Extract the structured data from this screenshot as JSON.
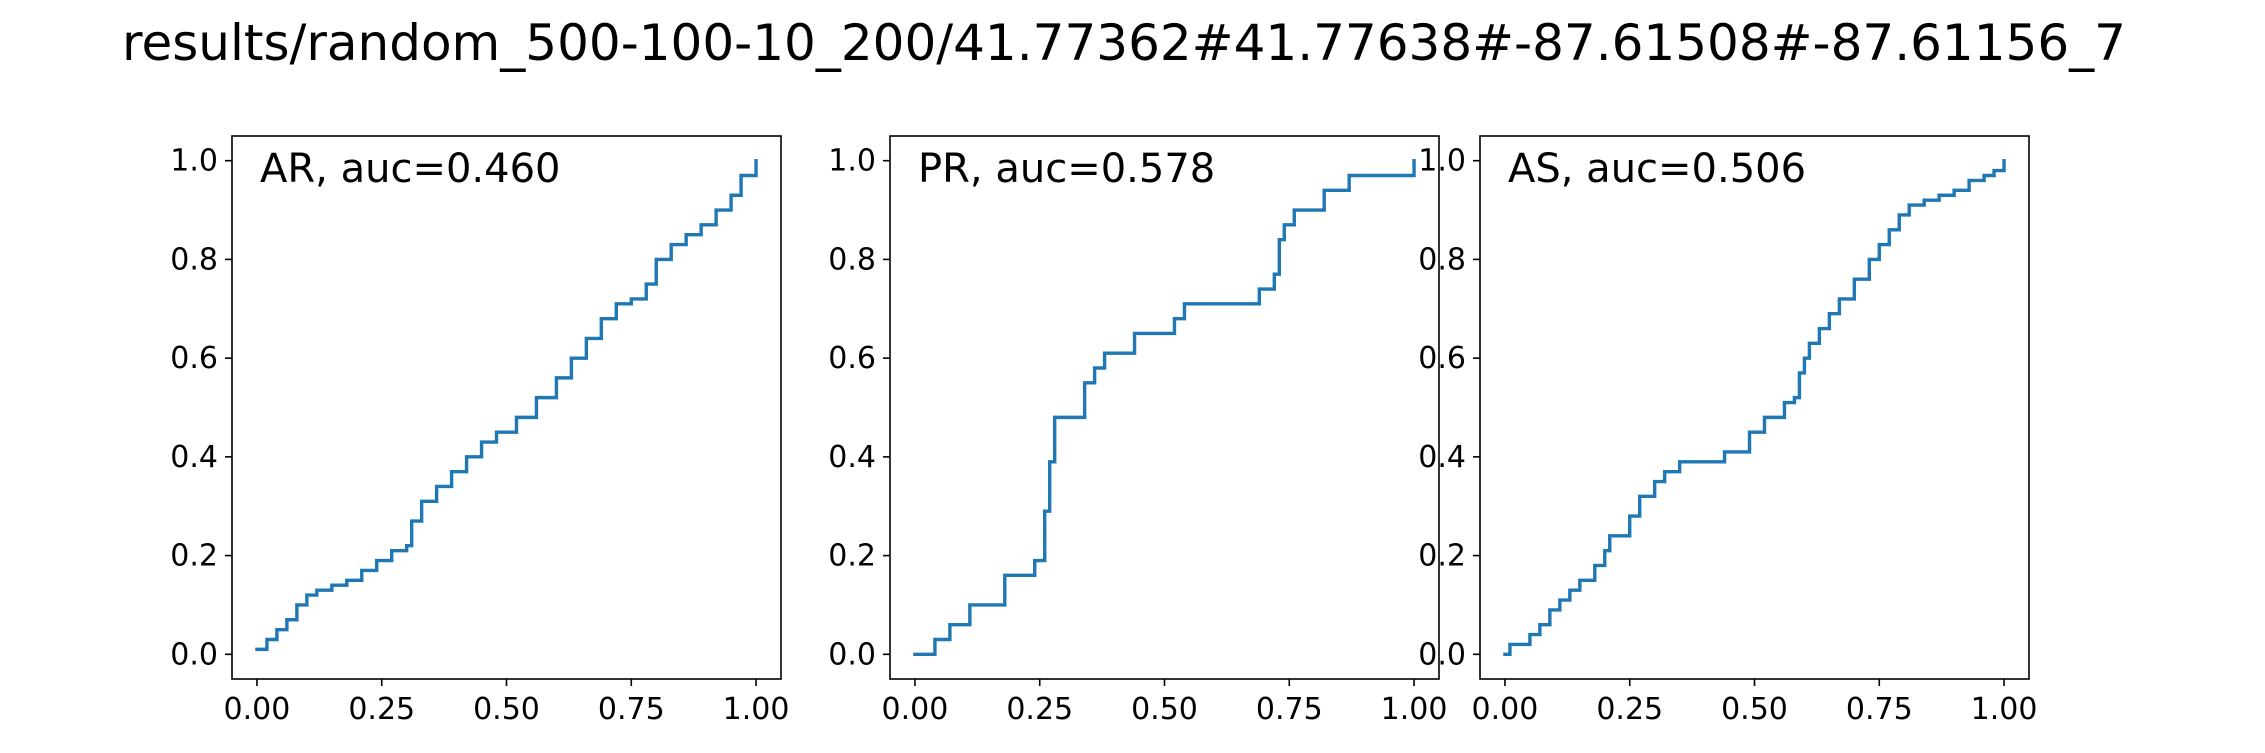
{
  "figure": {
    "suptitle": "results/random_500-100-10_200/41.77362#41.77638#-87.61508#-87.61156_7",
    "line_color": "#1f77b4"
  },
  "chart_data": [
    {
      "type": "line",
      "step": true,
      "title": "AR, auc=0.460",
      "xlabel": "",
      "ylabel": "",
      "xlim": [
        -0.05,
        1.05
      ],
      "ylim": [
        -0.05,
        1.05
      ],
      "xticks": [
        "0.00",
        "0.25",
        "0.50",
        "0.75",
        "1.00"
      ],
      "yticks": [
        "0.0",
        "0.2",
        "0.4",
        "0.6",
        "0.8",
        "1.0"
      ],
      "grid": false,
      "series": [
        {
          "x": [
            0.0,
            0.02,
            0.04,
            0.06,
            0.08,
            0.1,
            0.12,
            0.15,
            0.18,
            0.21,
            0.24,
            0.27,
            0.3,
            0.31,
            0.33,
            0.36,
            0.39,
            0.42,
            0.45,
            0.48,
            0.52,
            0.56,
            0.6,
            0.63,
            0.66,
            0.69,
            0.72,
            0.75,
            0.78,
            0.8,
            0.83,
            0.86,
            0.89,
            0.92,
            0.95,
            0.97,
            1.0
          ],
          "y": [
            0.01,
            0.03,
            0.05,
            0.07,
            0.1,
            0.12,
            0.13,
            0.14,
            0.15,
            0.17,
            0.19,
            0.21,
            0.22,
            0.27,
            0.31,
            0.34,
            0.37,
            0.4,
            0.43,
            0.45,
            0.48,
            0.52,
            0.56,
            0.6,
            0.64,
            0.68,
            0.71,
            0.72,
            0.75,
            0.8,
            0.83,
            0.85,
            0.87,
            0.9,
            0.93,
            0.97,
            1.0
          ]
        }
      ]
    },
    {
      "type": "line",
      "step": true,
      "title": "PR, auc=0.578",
      "xlabel": "",
      "ylabel": "",
      "xlim": [
        -0.05,
        1.05
      ],
      "ylim": [
        -0.05,
        1.05
      ],
      "xticks": [
        "0.00",
        "0.25",
        "0.50",
        "0.75",
        "1.00"
      ],
      "yticks": [
        "0.0",
        "0.2",
        "0.4",
        "0.6",
        "0.8",
        "1.0"
      ],
      "grid": false,
      "series": [
        {
          "x": [
            0.0,
            0.04,
            0.07,
            0.11,
            0.18,
            0.24,
            0.26,
            0.27,
            0.28,
            0.34,
            0.36,
            0.38,
            0.44,
            0.52,
            0.54,
            0.69,
            0.72,
            0.73,
            0.74,
            0.76,
            0.82,
            0.87,
            1.0
          ],
          "y": [
            0.0,
            0.03,
            0.06,
            0.1,
            0.16,
            0.19,
            0.29,
            0.39,
            0.48,
            0.55,
            0.58,
            0.61,
            0.65,
            0.68,
            0.71,
            0.74,
            0.77,
            0.84,
            0.87,
            0.9,
            0.94,
            0.97,
            1.0
          ]
        }
      ]
    },
    {
      "type": "line",
      "step": true,
      "title": "AS, auc=0.506",
      "xlabel": "",
      "ylabel": "",
      "xlim": [
        -0.05,
        1.05
      ],
      "ylim": [
        -0.05,
        1.05
      ],
      "xticks": [
        "0.00",
        "0.25",
        "0.50",
        "0.75",
        "1.00"
      ],
      "yticks": [
        "0.0",
        "0.2",
        "0.4",
        "0.6",
        "0.8",
        "1.0"
      ],
      "grid": false,
      "series": [
        {
          "x": [
            0.0,
            0.01,
            0.05,
            0.07,
            0.09,
            0.11,
            0.13,
            0.15,
            0.18,
            0.2,
            0.21,
            0.25,
            0.27,
            0.3,
            0.32,
            0.35,
            0.44,
            0.49,
            0.52,
            0.56,
            0.58,
            0.59,
            0.6,
            0.61,
            0.63,
            0.65,
            0.67,
            0.7,
            0.73,
            0.75,
            0.77,
            0.79,
            0.81,
            0.84,
            0.87,
            0.9,
            0.93,
            0.96,
            0.98,
            1.0
          ],
          "y": [
            0.0,
            0.02,
            0.04,
            0.06,
            0.09,
            0.11,
            0.13,
            0.15,
            0.18,
            0.21,
            0.24,
            0.28,
            0.32,
            0.35,
            0.37,
            0.39,
            0.41,
            0.45,
            0.48,
            0.51,
            0.52,
            0.57,
            0.6,
            0.63,
            0.66,
            0.69,
            0.72,
            0.76,
            0.8,
            0.83,
            0.86,
            0.89,
            0.91,
            0.92,
            0.93,
            0.94,
            0.96,
            0.97,
            0.98,
            1.0
          ]
        }
      ]
    }
  ]
}
